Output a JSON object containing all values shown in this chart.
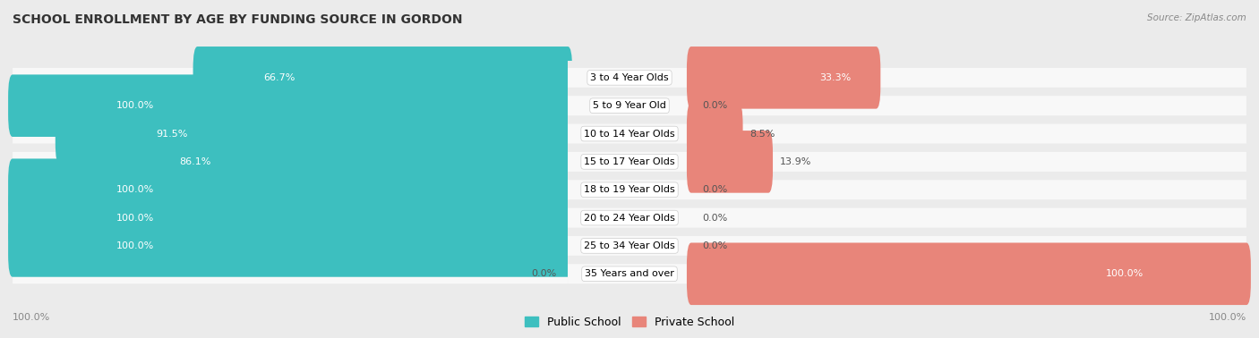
{
  "title": "SCHOOL ENROLLMENT BY AGE BY FUNDING SOURCE IN GORDON",
  "source": "Source: ZipAtlas.com",
  "categories": [
    "3 to 4 Year Olds",
    "5 to 9 Year Old",
    "10 to 14 Year Olds",
    "15 to 17 Year Olds",
    "18 to 19 Year Olds",
    "20 to 24 Year Olds",
    "25 to 34 Year Olds",
    "35 Years and over"
  ],
  "public_values": [
    66.7,
    100.0,
    91.5,
    86.1,
    100.0,
    100.0,
    100.0,
    0.0
  ],
  "private_values": [
    33.3,
    0.0,
    8.5,
    13.9,
    0.0,
    0.0,
    0.0,
    100.0
  ],
  "public_labels": [
    "66.7%",
    "100.0%",
    "91.5%",
    "86.1%",
    "100.0%",
    "100.0%",
    "100.0%",
    "0.0%"
  ],
  "private_labels": [
    "33.3%",
    "0.0%",
    "8.5%",
    "13.9%",
    "0.0%",
    "0.0%",
    "0.0%",
    "100.0%"
  ],
  "public_color": "#3dbfbf",
  "private_color": "#e8857a",
  "bg_color": "#ebebeb",
  "bar_bg_color": "#f5f5f5",
  "row_bg_color": "#f0f0f0",
  "title_fontsize": 10,
  "label_fontsize": 8,
  "cat_fontsize": 8,
  "bar_height": 0.62,
  "legend_public": "Public School",
  "legend_private": "Private School",
  "bottom_left_label": "100.0%",
  "bottom_right_label": "100.0%"
}
